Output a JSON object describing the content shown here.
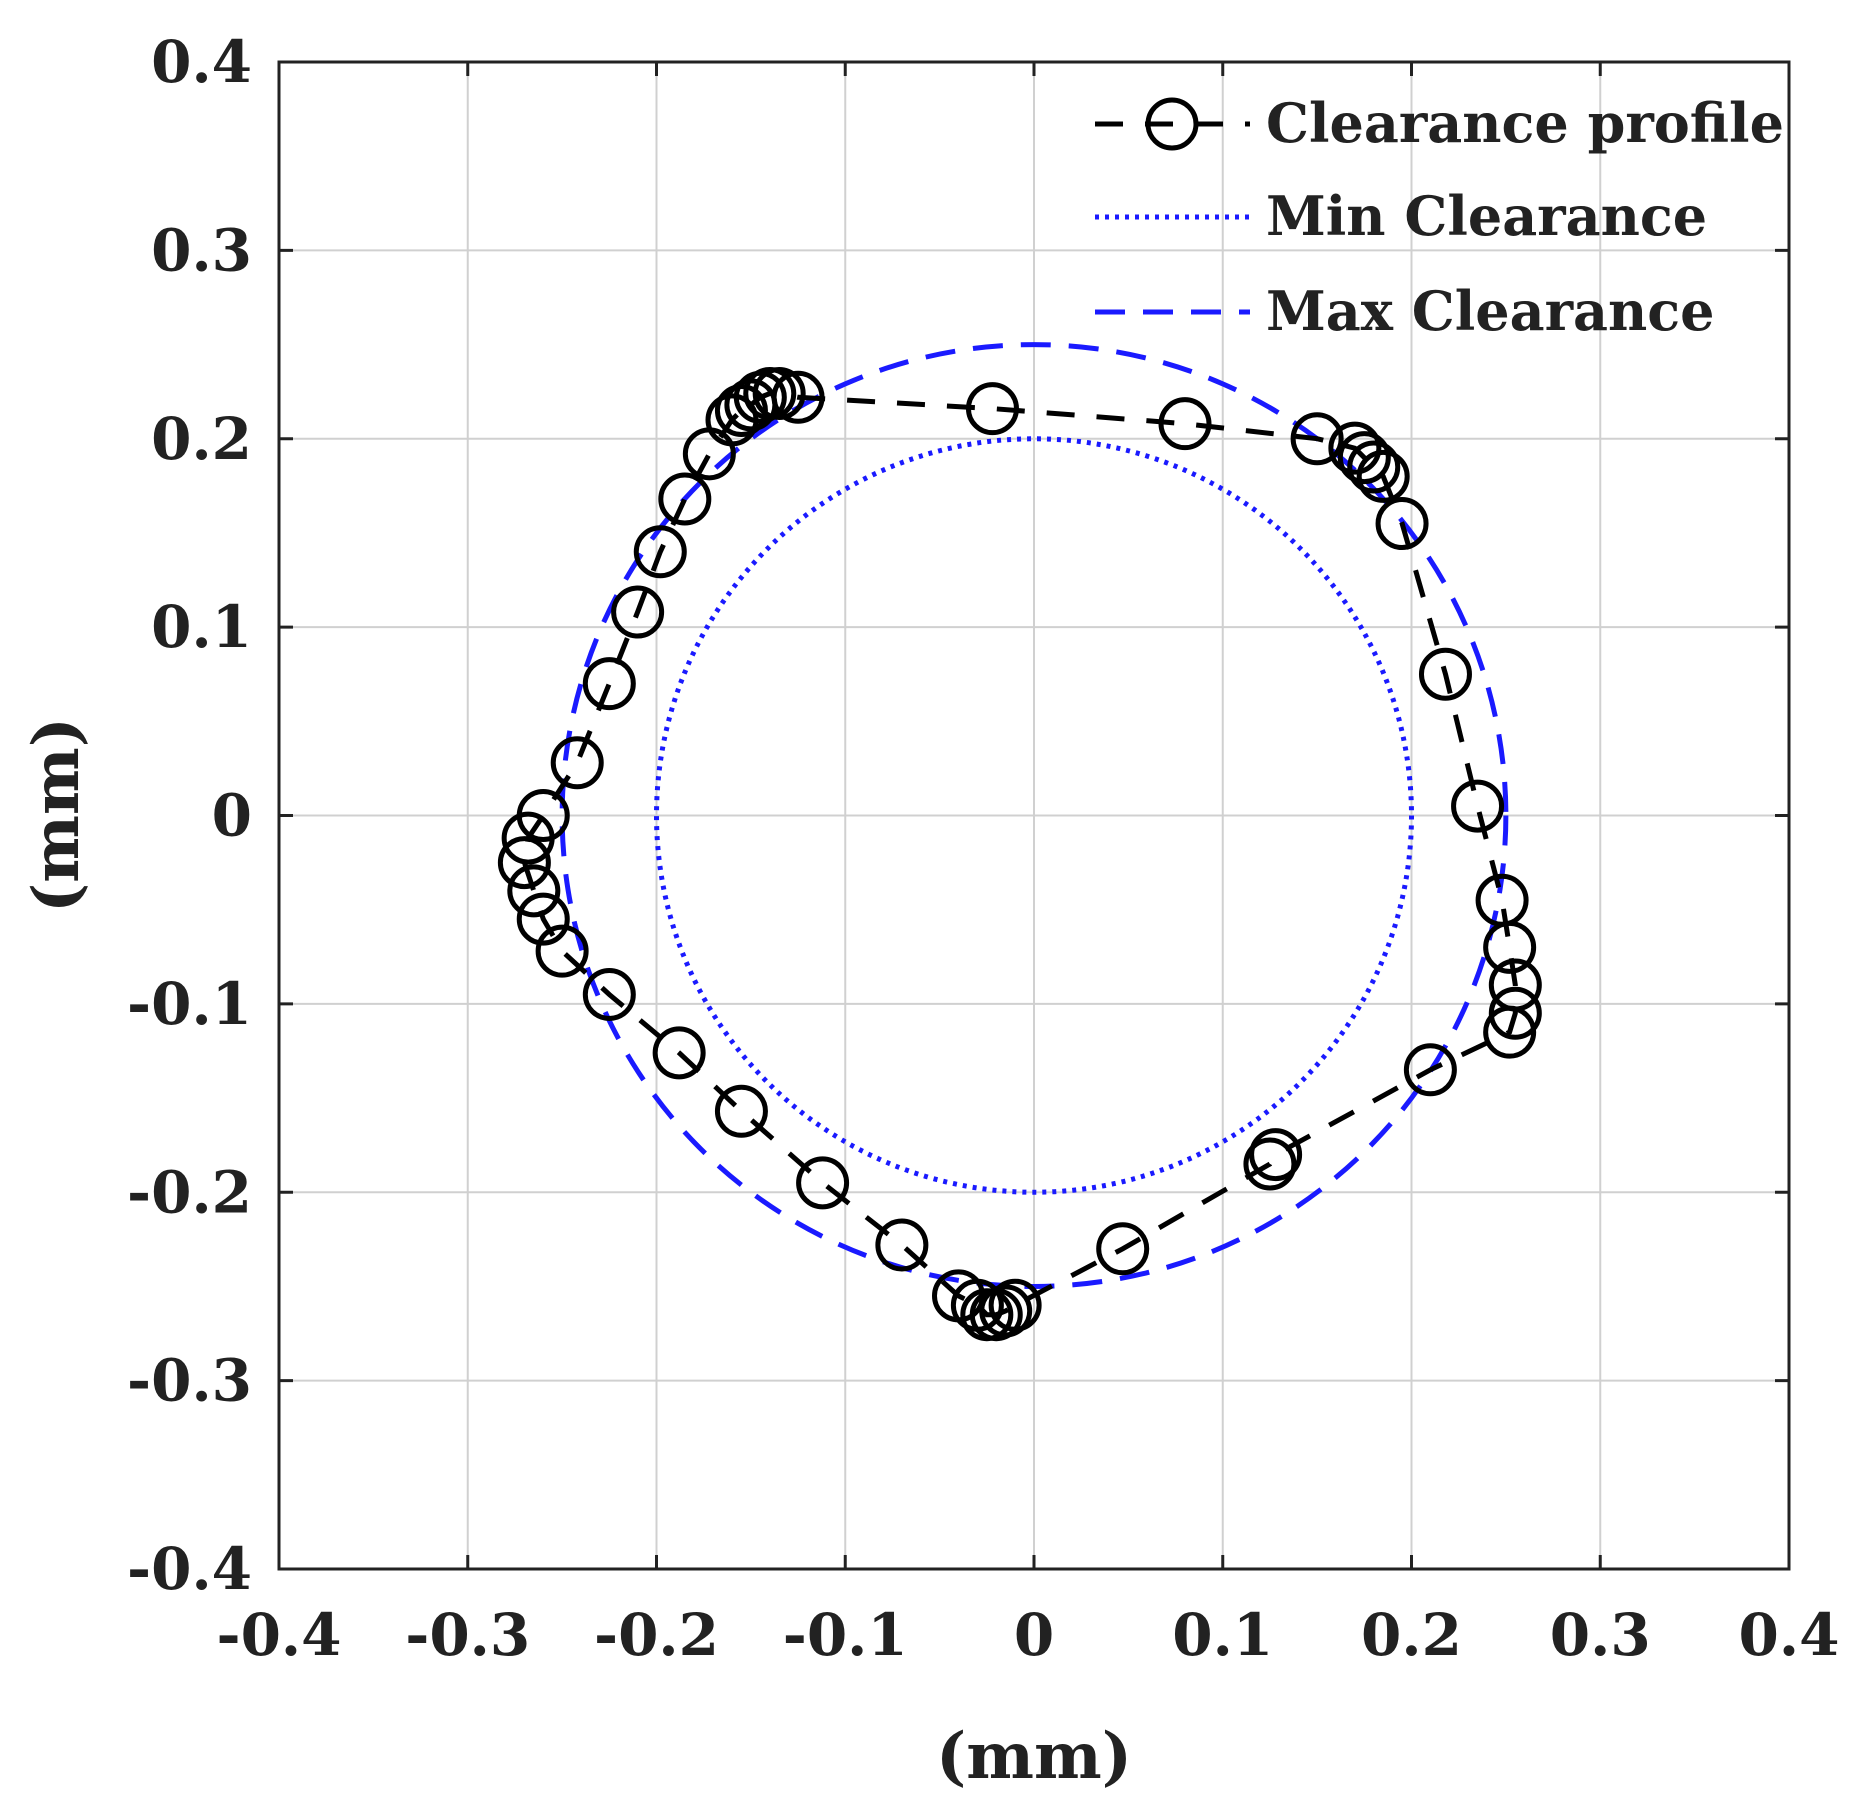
{
  "chart_data": {
    "type": "scatter",
    "title": "",
    "xlabel": "(mm)",
    "ylabel": "(mm)",
    "xlim": [
      -0.4,
      0.4
    ],
    "ylim": [
      -0.4,
      0.4
    ],
    "xticks": [
      -0.4,
      -0.3,
      -0.2,
      -0.1,
      0,
      0.1,
      0.2,
      0.3,
      0.4
    ],
    "yticks": [
      -0.4,
      -0.3,
      -0.2,
      -0.1,
      0,
      0.1,
      0.2,
      0.3,
      0.4
    ],
    "xtick_labels": [
      "-0.4",
      "-0.3",
      "-0.2",
      "-0.1",
      "0",
      "0.1",
      "0.2",
      "0.3",
      "0.4"
    ],
    "ytick_labels": [
      "-0.4",
      "-0.3",
      "-0.2",
      "-0.1",
      "0",
      "0.1",
      "0.2",
      "0.3",
      "0.4"
    ],
    "grid": true,
    "legend_position": "top-right",
    "colors": {
      "profile": "#000000",
      "min": "#1a1aff",
      "max": "#1a1aff",
      "grid": "#d0d0d0",
      "axes": "#222222"
    },
    "series": [
      {
        "name": "Clearance profile",
        "style": "dashed-line-open-circle-markers",
        "x": [
          -0.15,
          -0.145,
          -0.14,
          -0.135,
          -0.125,
          -0.022,
          0.08,
          0.15,
          0.17,
          0.175,
          0.18,
          0.185,
          0.195,
          0.218,
          0.235,
          0.248,
          0.252,
          0.255,
          0.255,
          0.252,
          0.21,
          0.128,
          0.125,
          0.047,
          -0.01,
          -0.015,
          -0.02,
          -0.025,
          -0.03,
          -0.04,
          -0.07,
          -0.112,
          -0.155,
          -0.188,
          -0.225,
          -0.25,
          -0.26,
          -0.265,
          -0.27,
          -0.268,
          -0.26,
          -0.242,
          -0.225,
          -0.21,
          -0.198,
          -0.185,
          -0.172,
          -0.16,
          -0.155
        ],
        "y": [
          0.218,
          0.222,
          0.224,
          0.224,
          0.222,
          0.216,
          0.208,
          0.2,
          0.195,
          0.19,
          0.185,
          0.18,
          0.155,
          0.075,
          0.005,
          -0.045,
          -0.07,
          -0.09,
          -0.105,
          -0.115,
          -0.135,
          -0.18,
          -0.185,
          -0.23,
          -0.26,
          -0.263,
          -0.265,
          -0.265,
          -0.26,
          -0.255,
          -0.228,
          -0.195,
          -0.157,
          -0.126,
          -0.095,
          -0.072,
          -0.055,
          -0.04,
          -0.025,
          -0.012,
          0.0,
          0.028,
          0.07,
          0.108,
          0.14,
          0.168,
          0.192,
          0.21,
          0.215
        ]
      },
      {
        "name": "Min Clearance",
        "style": "dotted-line",
        "shape": "circle",
        "center": [
          0,
          0
        ],
        "radius": 0.2
      },
      {
        "name": "Max Clearance",
        "style": "dashed-line",
        "shape": "circle",
        "center": [
          0,
          0
        ],
        "radius": 0.25
      }
    ]
  }
}
